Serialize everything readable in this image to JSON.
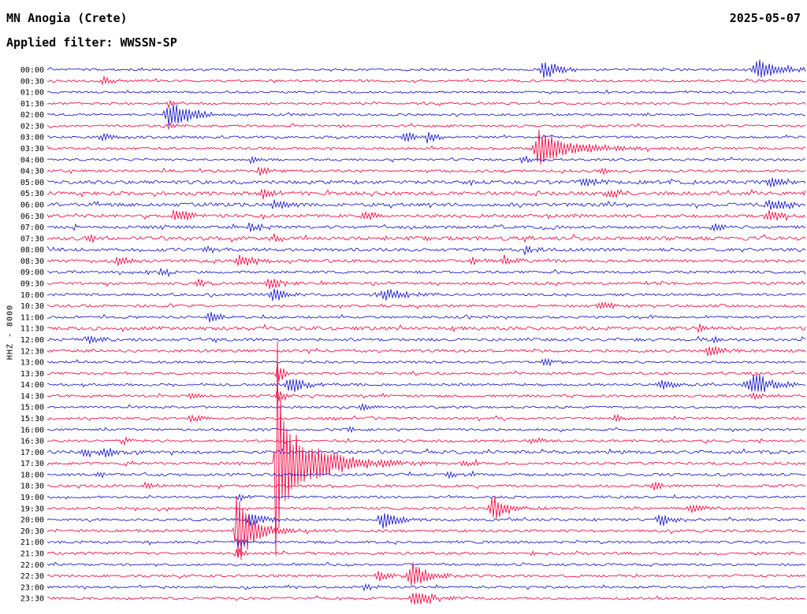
{
  "header": {
    "station": "MN Anogia (Crete)",
    "date": "2025-05-07",
    "filter": "Applied filter: WWSSN-SP"
  },
  "left_axis_label": "HHZ - 8000",
  "colors": {
    "blue": "#2222cc",
    "red": "#f5134b",
    "text": "#000000",
    "background": "#ffffff"
  },
  "chart_data": {
    "type": "line",
    "subtype": "helicorder-seismogram",
    "title": "MN Anogia (Crete)",
    "date": "2025-05-07",
    "filter": "WWSSN-SP",
    "channel_scale": "HHZ - 8000",
    "row_interval_minutes": 30,
    "trace_color_cycle": [
      "blue",
      "red"
    ],
    "rows": [
      {
        "t": "00:00",
        "c": "blue",
        "n": 1.4,
        "e": [
          [
            0.655,
            13,
            0.005,
            0.02
          ],
          [
            0.941,
            12,
            0.012,
            0.03
          ]
        ]
      },
      {
        "t": "00:30",
        "c": "red",
        "n": 1.4,
        "e": [
          [
            0.076,
            5,
            0.006,
            0.015
          ]
        ]
      },
      {
        "t": "01:00",
        "c": "blue",
        "n": 1.3,
        "e": []
      },
      {
        "t": "01:30",
        "c": "red",
        "n": 1.3,
        "e": [
          [
            0.161,
            5,
            0.004,
            0.01
          ]
        ]
      },
      {
        "t": "02:00",
        "c": "blue",
        "n": 1.4,
        "e": [
          [
            0.161,
            18,
            0.006,
            0.03
          ]
        ]
      },
      {
        "t": "02:30",
        "c": "red",
        "n": 1.4,
        "e": [
          [
            0.161,
            4,
            0.003,
            0.01
          ]
        ]
      },
      {
        "t": "03:00",
        "c": "blue",
        "n": 1.4,
        "e": [
          [
            0.073,
            6,
            0.005,
            0.012
          ],
          [
            0.473,
            8,
            0.006,
            0.012
          ],
          [
            0.504,
            7,
            0.005,
            0.012
          ]
        ]
      },
      {
        "t": "03:30",
        "c": "red",
        "n": 1.5,
        "e": [
          [
            0.65,
            22,
            0.008,
            0.012
          ],
          [
            0.66,
            12,
            0.01,
            0.06
          ]
        ]
      },
      {
        "t": "04:00",
        "c": "blue",
        "n": 1.4,
        "e": [
          [
            0.625,
            6,
            0.003,
            0.015
          ],
          [
            0.27,
            5,
            0.004,
            0.01
          ]
        ]
      },
      {
        "t": "04:30",
        "c": "red",
        "n": 1.5,
        "e": [
          [
            0.28,
            6,
            0.004,
            0.012
          ],
          [
            0.73,
            5,
            0.004,
            0.012
          ]
        ]
      },
      {
        "t": "05:00",
        "c": "blue",
        "n": 2.2,
        "e": [
          [
            0.71,
            6,
            0.006,
            0.015
          ],
          [
            0.955,
            7,
            0.008,
            0.02
          ]
        ]
      },
      {
        "t": "05:30",
        "c": "red",
        "n": 2.2,
        "e": [
          [
            0.285,
            6,
            0.005,
            0.015
          ],
          [
            0.74,
            6,
            0.005,
            0.015
          ]
        ]
      },
      {
        "t": "06:00",
        "c": "blue",
        "n": 2.2,
        "e": [
          [
            0.3,
            7,
            0.005,
            0.015
          ],
          [
            0.955,
            9,
            0.008,
            0.02
          ]
        ]
      },
      {
        "t": "06:30",
        "c": "red",
        "n": 2.0,
        "e": [
          [
            0.17,
            9,
            0.006,
            0.018
          ],
          [
            0.42,
            6,
            0.005,
            0.015
          ],
          [
            0.955,
            8,
            0.008,
            0.018
          ]
        ]
      },
      {
        "t": "07:00",
        "c": "blue",
        "n": 1.8,
        "e": [
          [
            0.27,
            6,
            0.005,
            0.015
          ],
          [
            0.88,
            5,
            0.005,
            0.012
          ]
        ]
      },
      {
        "t": "07:30",
        "c": "red",
        "n": 2.4,
        "e": [
          [
            0.055,
            5,
            0.004,
            0.012
          ],
          [
            0.3,
            6,
            0.005,
            0.012
          ],
          [
            0.5,
            5,
            0.004,
            0.01
          ],
          [
            0.63,
            5,
            0.004,
            0.01
          ]
        ]
      },
      {
        "t": "08:00",
        "c": "blue",
        "n": 2.0,
        "e": [
          [
            0.21,
            5,
            0.004,
            0.012
          ],
          [
            0.63,
            6,
            0.005,
            0.015
          ]
        ]
      },
      {
        "t": "08:30",
        "c": "red",
        "n": 1.8,
        "e": [
          [
            0.095,
            6,
            0.005,
            0.012
          ],
          [
            0.255,
            9,
            0.006,
            0.02
          ],
          [
            0.561,
            6,
            0.005,
            0.012
          ],
          [
            0.603,
            7,
            0.005,
            0.015
          ]
        ]
      },
      {
        "t": "09:00",
        "c": "blue",
        "n": 1.5,
        "e": [
          [
            0.15,
            5,
            0.004,
            0.012
          ]
        ]
      },
      {
        "t": "09:30",
        "c": "red",
        "n": 1.6,
        "e": [
          [
            0.2,
            6,
            0.005,
            0.012
          ],
          [
            0.293,
            8,
            0.006,
            0.015
          ]
        ]
      },
      {
        "t": "10:00",
        "c": "blue",
        "n": 1.6,
        "e": [
          [
            0.299,
            10,
            0.006,
            0.015
          ],
          [
            0.447,
            7,
            0.012,
            0.03
          ]
        ]
      },
      {
        "t": "10:30",
        "c": "red",
        "n": 1.6,
        "e": [
          [
            0.73,
            6,
            0.005,
            0.015
          ]
        ]
      },
      {
        "t": "11:00",
        "c": "blue",
        "n": 1.5,
        "e": [
          [
            0.215,
            7,
            0.005,
            0.015
          ]
        ]
      },
      {
        "t": "11:30",
        "c": "red",
        "n": 2.2,
        "e": [
          [
            0.86,
            5,
            0.005,
            0.012
          ]
        ]
      },
      {
        "t": "12:00",
        "c": "blue",
        "n": 1.8,
        "e": [
          [
            0.055,
            6,
            0.004,
            0.012
          ],
          [
            0.88,
            5,
            0.004,
            0.01
          ]
        ]
      },
      {
        "t": "12:30",
        "c": "red",
        "n": 1.7,
        "e": [
          [
            0.875,
            7,
            0.006,
            0.015
          ]
        ]
      },
      {
        "t": "13:00",
        "c": "blue",
        "n": 1.4,
        "e": [
          [
            0.655,
            6,
            0.004,
            0.012
          ]
        ]
      },
      {
        "t": "13:30",
        "c": "red",
        "n": 1.4,
        "e": [
          [
            0.3036,
            15,
            0.002,
            0.008
          ]
        ]
      },
      {
        "t": "14:00",
        "c": "blue",
        "n": 1.5,
        "e": [
          [
            0.32,
            12,
            0.006,
            0.02
          ],
          [
            0.811,
            8,
            0.006,
            0.015
          ],
          [
            0.935,
            14,
            0.012,
            0.025
          ]
        ]
      },
      {
        "t": "14:30",
        "c": "red",
        "n": 1.5,
        "e": [
          [
            0.3036,
            15,
            0.002,
            0.008
          ],
          [
            0.19,
            5,
            0.004,
            0.01
          ],
          [
            0.93,
            5,
            0.004,
            0.012
          ]
        ]
      },
      {
        "t": "15:00",
        "c": "blue",
        "n": 1.4,
        "e": [
          [
            0.415,
            6,
            0.005,
            0.012
          ]
        ]
      },
      {
        "t": "15:30",
        "c": "red",
        "n": 1.5,
        "e": [
          [
            0.19,
            6,
            0.004,
            0.012
          ],
          [
            0.75,
            5,
            0.004,
            0.01
          ]
        ]
      },
      {
        "t": "16:00",
        "c": "blue",
        "n": 1.4,
        "e": [
          [
            0.4,
            5,
            0.004,
            0.01
          ]
        ]
      },
      {
        "t": "16:30",
        "c": "red",
        "n": 1.5,
        "e": [
          [
            0.1,
            5,
            0.004,
            0.01
          ],
          [
            0.64,
            5,
            0.004,
            0.01
          ]
        ]
      },
      {
        "t": "17:00",
        "c": "blue",
        "n": 2.0,
        "e": [
          [
            0.05,
            6,
            0.005,
            0.015
          ],
          [
            0.075,
            6,
            0.005,
            0.015
          ]
        ]
      },
      {
        "t": "17:30",
        "c": "red",
        "n": 1.6,
        "e": [
          [
            0.3036,
            260,
            0.0025,
            0.003
          ],
          [
            0.315,
            48,
            0.008,
            0.05
          ],
          [
            0.55,
            5,
            0.004,
            0.01
          ]
        ]
      },
      {
        "t": "18:00",
        "c": "blue",
        "n": 1.8,
        "e": [
          [
            0.065,
            5,
            0.004,
            0.012
          ],
          [
            0.53,
            5,
            0.004,
            0.01
          ]
        ]
      },
      {
        "t": "18:30",
        "c": "red",
        "n": 1.6,
        "e": [
          [
            0.13,
            5,
            0.004,
            0.01
          ],
          [
            0.8,
            6,
            0.005,
            0.012
          ]
        ]
      },
      {
        "t": "19:00",
        "c": "blue",
        "n": 1.5,
        "e": [
          [
            0.253,
            5,
            0.004,
            0.01
          ]
        ]
      },
      {
        "t": "19:30",
        "c": "red",
        "n": 1.6,
        "e": [
          [
            0.59,
            16,
            0.008,
            0.02
          ],
          [
            0.852,
            8,
            0.005,
            0.015
          ]
        ]
      },
      {
        "t": "20:00",
        "c": "blue",
        "n": 1.5,
        "e": [
          [
            0.27,
            12,
            0.006,
            0.015
          ],
          [
            0.445,
            12,
            0.008,
            0.018
          ],
          [
            0.809,
            10,
            0.006,
            0.015
          ]
        ]
      },
      {
        "t": "20:30",
        "c": "red",
        "n": 1.6,
        "e": [
          [
            0.25,
            48,
            0.002,
            0.004
          ],
          [
            0.255,
            30,
            0.006,
            0.025
          ]
        ]
      },
      {
        "t": "21:00",
        "c": "blue",
        "n": 1.5,
        "e": [
          [
            0.253,
            6,
            0.004,
            0.015
          ]
        ]
      },
      {
        "t": "21:30",
        "c": "red",
        "n": 1.6,
        "e": [
          [
            0.25,
            10,
            0.003,
            0.01
          ],
          [
            0.64,
            5,
            0.004,
            0.01
          ]
        ]
      },
      {
        "t": "22:00",
        "c": "blue",
        "n": 1.4,
        "e": []
      },
      {
        "t": "22:30",
        "c": "red",
        "n": 1.5,
        "e": [
          [
            0.437,
            8,
            0.005,
            0.012
          ],
          [
            0.483,
            18,
            0.008,
            0.02
          ]
        ]
      },
      {
        "t": "23:00",
        "c": "blue",
        "n": 1.4,
        "e": [
          [
            0.42,
            5,
            0.004,
            0.01
          ]
        ]
      },
      {
        "t": "23:30",
        "c": "red",
        "n": 1.5,
        "e": [
          [
            0.486,
            12,
            0.008,
            0.02
          ]
        ]
      }
    ]
  }
}
